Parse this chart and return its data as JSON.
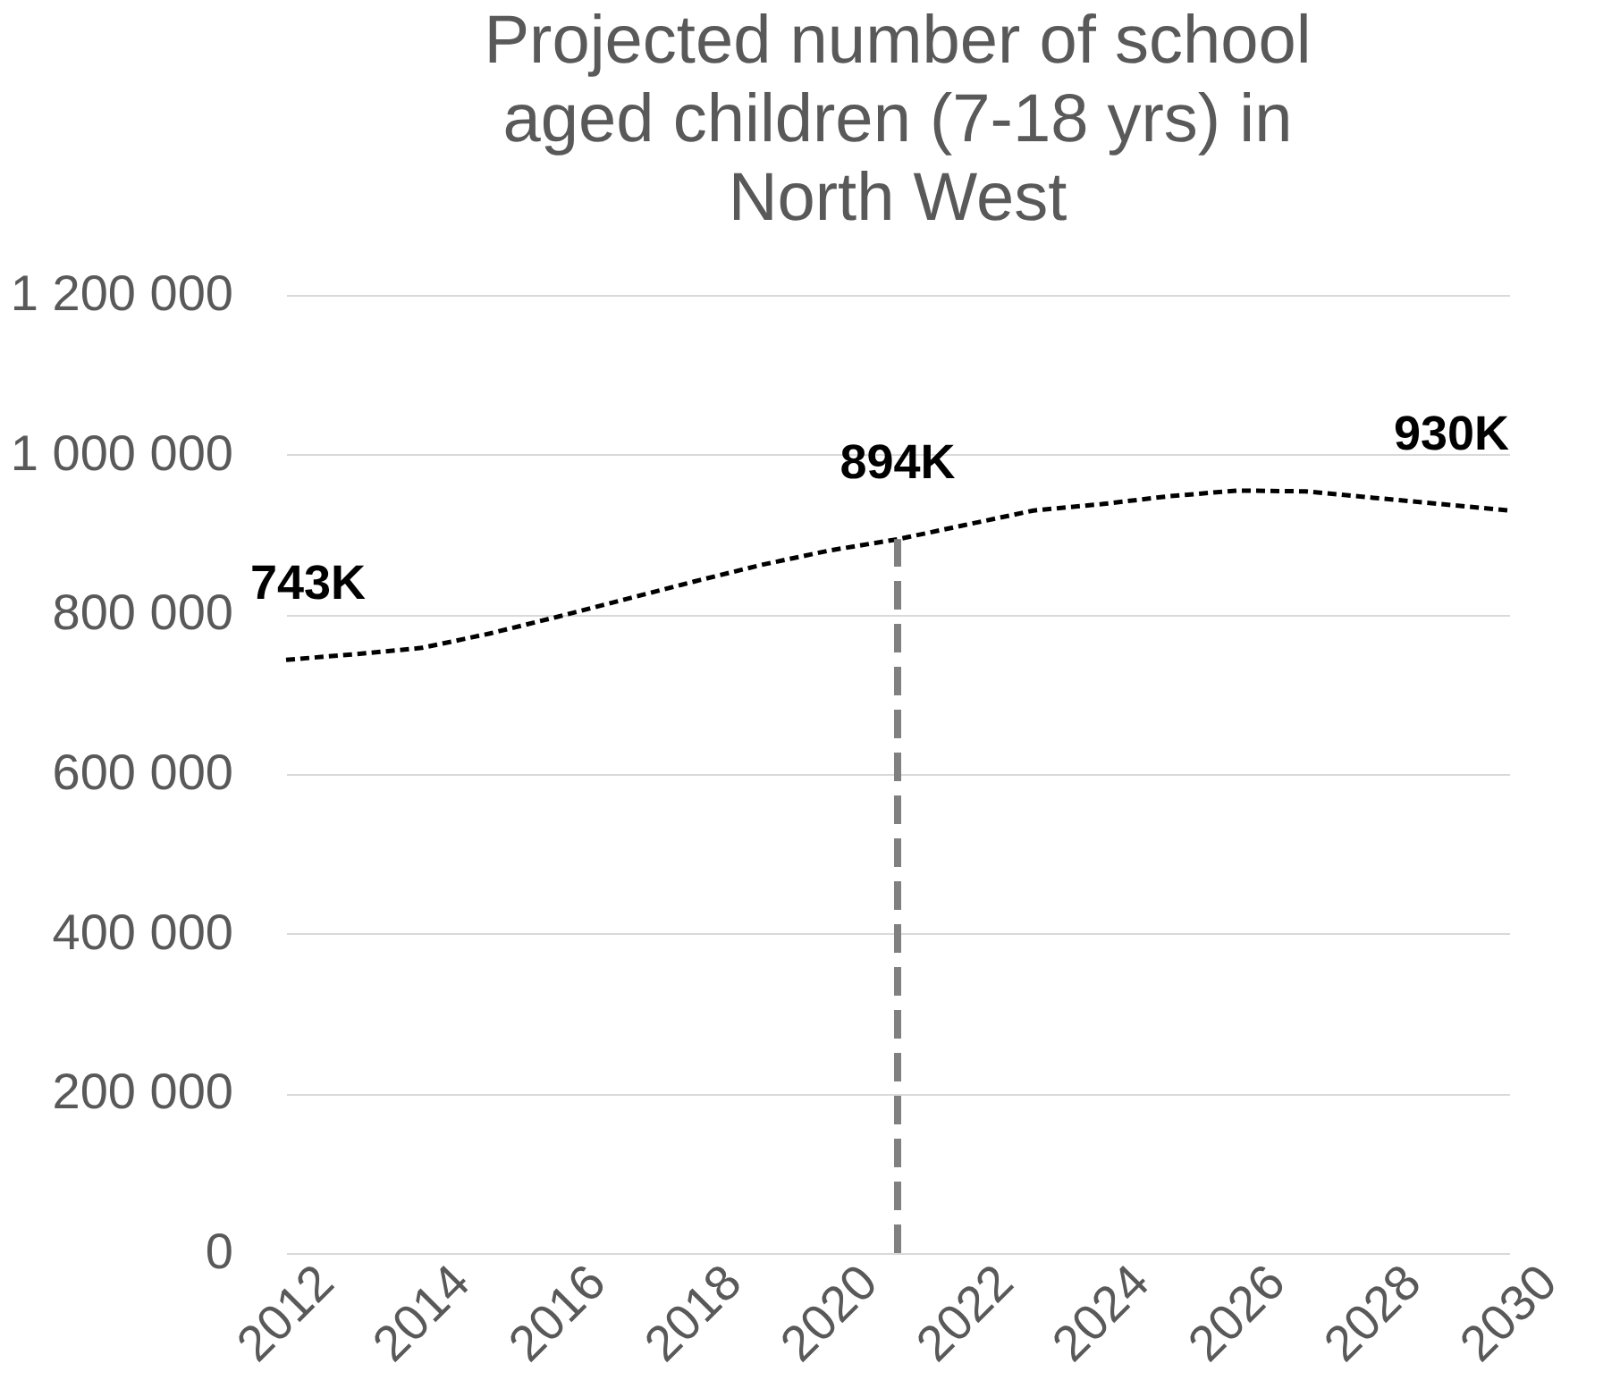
{
  "chart_data": {
    "type": "line",
    "title": "Projected number of school aged children (7-18 yrs) in North West",
    "x": [
      2012,
      2013,
      2014,
      2015,
      2016,
      2017,
      2018,
      2019,
      2020,
      2021,
      2022,
      2023,
      2024,
      2025,
      2026,
      2027,
      2028,
      2029,
      2030
    ],
    "series": [
      {
        "color": "#000000",
        "values": [
          743000,
          750000,
          758000,
          776000,
          797000,
          819000,
          841000,
          862000,
          880000,
          894000,
          912000,
          930000,
          938000,
          948000,
          955000,
          954000,
          946000,
          938000,
          930000
        ]
      }
    ],
    "xlim": [
      2012,
      2030
    ],
    "xticks": [
      2012,
      2014,
      2016,
      2018,
      2020,
      2022,
      2024,
      2026,
      2028,
      2030
    ],
    "ylim": [
      0,
      1200000
    ],
    "yticks": [
      {
        "value": 0,
        "label": "0"
      },
      {
        "value": 200000,
        "label": "200 000"
      },
      {
        "value": 400000,
        "label": "400 000"
      },
      {
        "value": 600000,
        "label": "600 000"
      },
      {
        "value": 800000,
        "label": "800 000"
      },
      {
        "value": 1000000,
        "label": "1 000 000"
      },
      {
        "value": 1200000,
        "label": "1 200 000"
      }
    ],
    "annotations": [
      {
        "text": "743K",
        "x": 2012,
        "y": 743000
      },
      {
        "text": "894K",
        "x": 2021,
        "y": 894000
      },
      {
        "text": "930K",
        "x": 2030,
        "y": 930000
      }
    ],
    "ref_lines": [
      {
        "axis": "x",
        "value": 2021,
        "color": "#808080",
        "line_style": "dashed"
      }
    ],
    "grid": "y",
    "marker": "none",
    "line_style": "dashed"
  }
}
